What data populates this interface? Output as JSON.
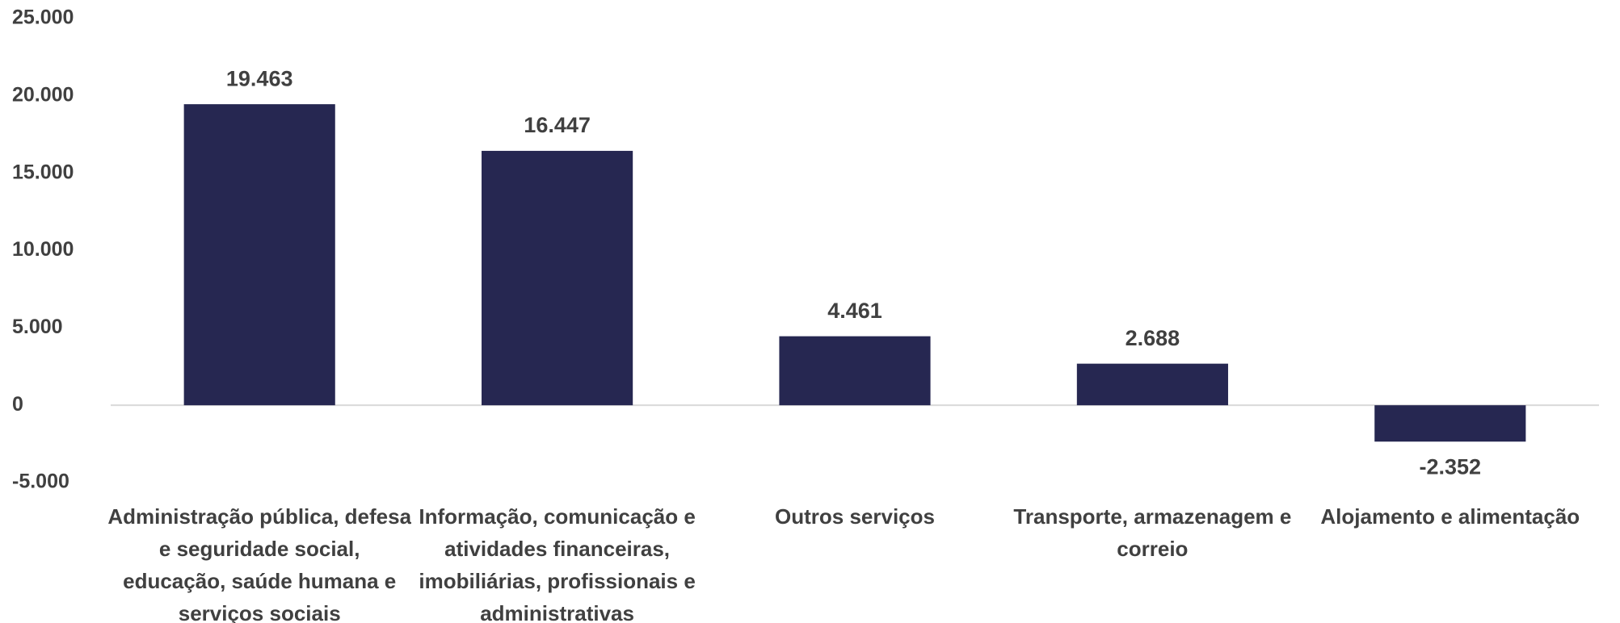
{
  "chart_data": {
    "type": "bar",
    "categories": [
      "Administração pública, defesa e seguridade social, educação, saúde humana e serviços sociais",
      "Informação, comunicação e atividades financeiras, imobiliárias, profissionais e administrativas",
      "Outros serviços",
      "Transporte, armazenagem e correio",
      "Alojamento e alimentação"
    ],
    "values": [
      19463,
      16447,
      4461,
      2688,
      -2352
    ],
    "value_labels": [
      "19.463",
      "16.447",
      "4.461",
      "2.688",
      "-2.352"
    ],
    "color": "#262751",
    "ylim": [
      -5000,
      25000
    ],
    "yticks": [
      {
        "value": -5000,
        "label": "-5.000"
      },
      0,
      {
        "value": 5000,
        "label": "5.000"
      },
      {
        "value": 10000,
        "label": "10.000"
      },
      {
        "value": 15000,
        "label": "15.000"
      },
      {
        "value": 20000,
        "label": "20.000"
      },
      {
        "value": 25000,
        "label": "25.000"
      }
    ],
    "grid": false
  }
}
